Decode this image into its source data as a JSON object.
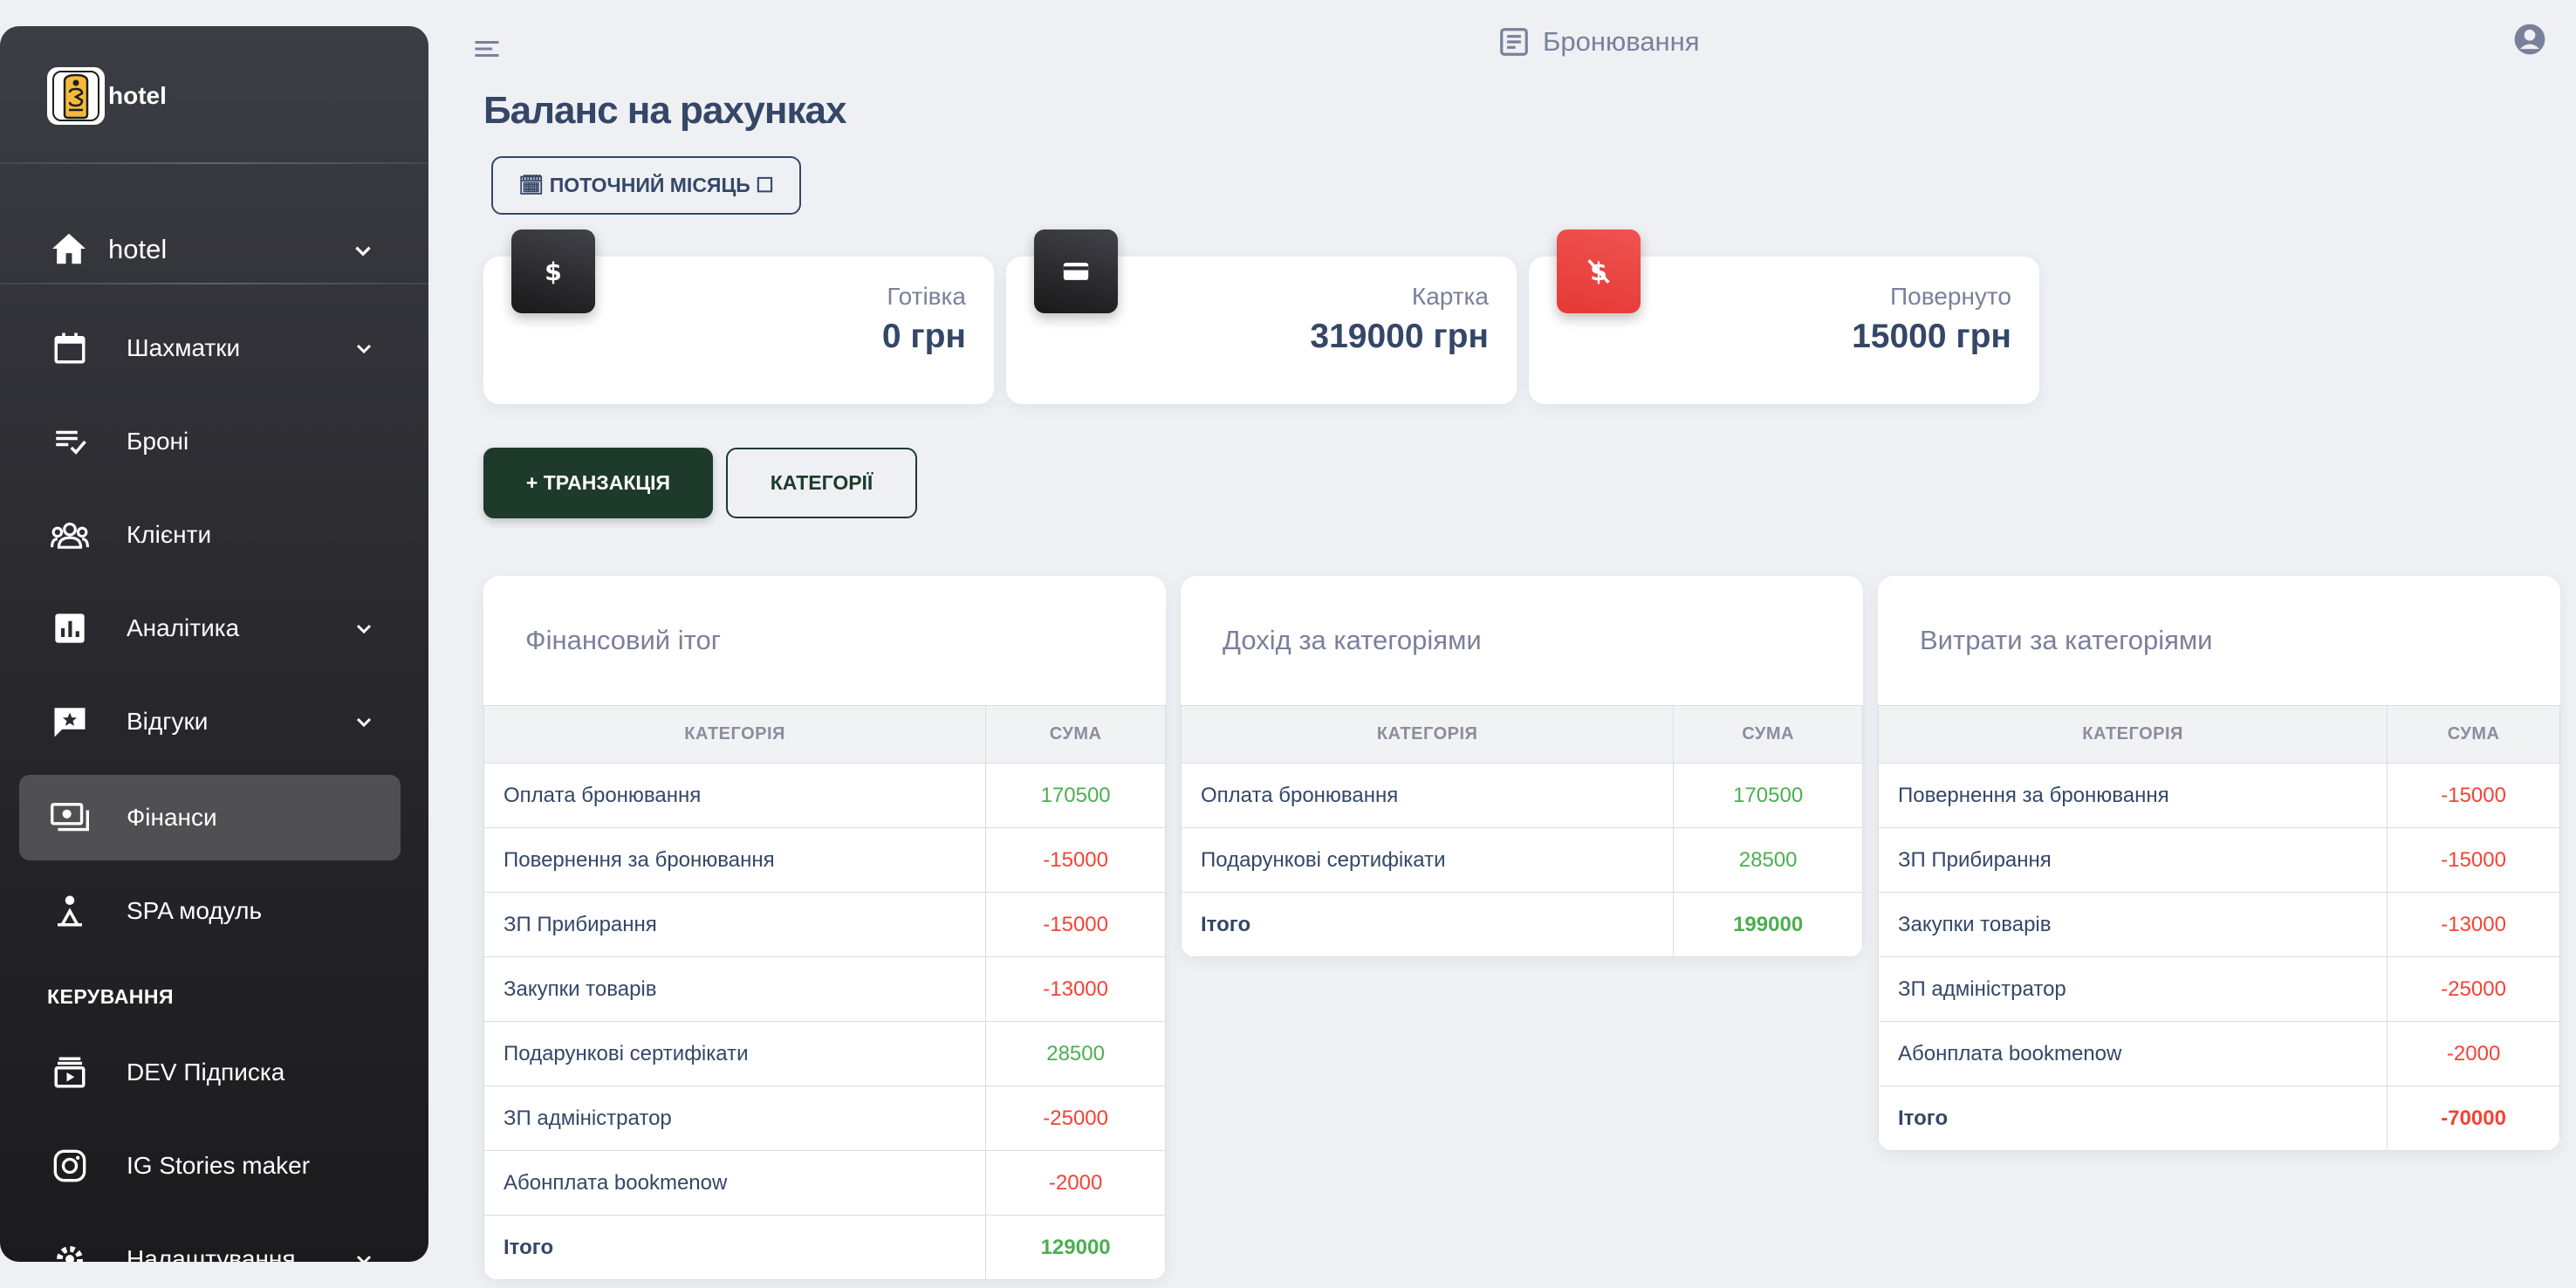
{
  "brand": {
    "name": "hotel"
  },
  "sidebar": {
    "hotel_item": {
      "label": "hotel"
    },
    "items": [
      {
        "label": "Шахматки",
        "icon": "calendar-icon",
        "has_chevron": true
      },
      {
        "label": "Броні",
        "icon": "playlist-check-icon",
        "has_chevron": false
      },
      {
        "label": "Клієнти",
        "icon": "groups-icon",
        "has_chevron": false
      },
      {
        "label": "Аналітика",
        "icon": "analytics-icon",
        "has_chevron": true
      },
      {
        "label": "Відгуки",
        "icon": "reviews-icon",
        "has_chevron": true
      },
      {
        "label": "Фінанси",
        "icon": "payments-icon",
        "has_chevron": false,
        "active": true
      },
      {
        "label": "SPA модуль",
        "icon": "spa-icon",
        "has_chevron": false
      }
    ],
    "section_title": "КЕРУВАННЯ",
    "manage_items": [
      {
        "label": "DEV Підписка",
        "icon": "subscriptions-icon"
      },
      {
        "label": "IG Stories maker",
        "icon": "instagram-icon"
      },
      {
        "label": "Налаштування",
        "icon": "settings-icon",
        "has_chevron": true
      }
    ]
  },
  "header": {
    "title": "Бронювання"
  },
  "main": {
    "page_title": "Баланс на рахунках",
    "period_button": "🗓 ПОТОЧНИЙ МІСЯЦЬ ☐",
    "stats": [
      {
        "label": "Готівка",
        "value": "0 грн",
        "icon": "dollar-icon"
      },
      {
        "label": "Картка",
        "value": "319000 грн",
        "icon": "credit-card-icon"
      },
      {
        "label": "Повернуто",
        "value": "15000 грн",
        "icon": "money-off-icon"
      }
    ],
    "add_transaction_label": "+ ТРАНЗАКЦІЯ",
    "categories_label": "КАТЕГОРІЇ",
    "tables": [
      {
        "title": "Фінансовий ітог",
        "columns": [
          "КАТЕГОРІЯ",
          "СУМА"
        ],
        "rows": [
          [
            "Оплата бронювання",
            "170500"
          ],
          [
            "Повернення за бронювання",
            "-15000"
          ],
          [
            "ЗП Прибирання",
            "-15000"
          ],
          [
            "Закупки товарів",
            "-13000"
          ],
          [
            "Подарункові сертифікати",
            "28500"
          ],
          [
            "ЗП адміністратор",
            "-25000"
          ],
          [
            "Абонплата bookmenow",
            "-2000"
          ]
        ],
        "total": [
          "Ітого",
          "129000"
        ]
      },
      {
        "title": "Дохід за категоріями",
        "columns": [
          "КАТЕГОРІЯ",
          "СУМА"
        ],
        "rows": [
          [
            "Оплата бронювання",
            "170500"
          ],
          [
            "Подарункові сертифікати",
            "28500"
          ]
        ],
        "total": [
          "Ітого",
          "199000"
        ]
      },
      {
        "title": "Витрати за категоріями",
        "columns": [
          "КАТЕГОРІЯ",
          "СУМА"
        ],
        "rows": [
          [
            "Повернення за бронювання",
            "-15000"
          ],
          [
            "ЗП Прибирання",
            "-15000"
          ],
          [
            "Закупки товарів",
            "-13000"
          ],
          [
            "ЗП адміністратор",
            "-25000"
          ],
          [
            "Абонплата bookmenow",
            "-2000"
          ]
        ],
        "total": [
          "Ітого",
          "-70000"
        ]
      }
    ]
  },
  "colors": {
    "positive": "#4caf50",
    "negative": "#f44335",
    "primary_button": "#1d3a2b",
    "refund_icon": "#e53935"
  }
}
